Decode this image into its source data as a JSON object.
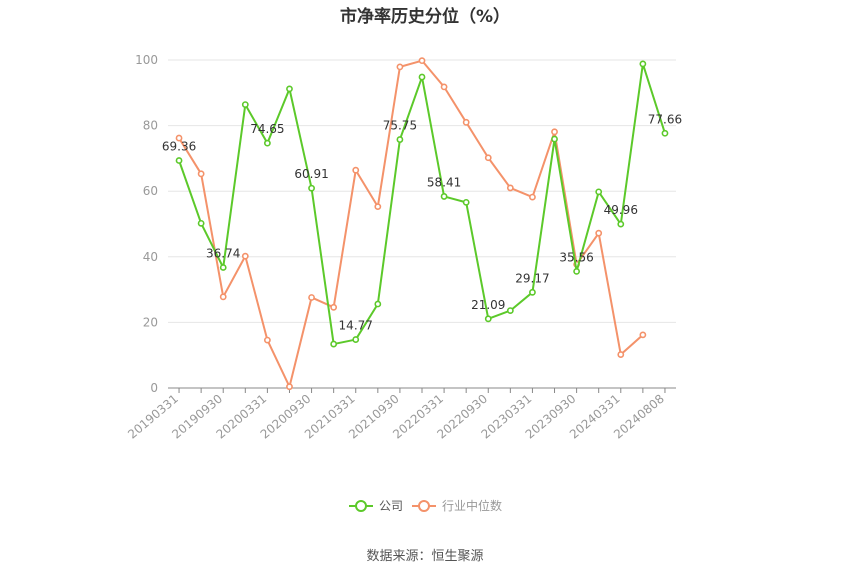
{
  "title": "市净率历史分位（%）",
  "source": "数据来源：恒生聚源",
  "colors": {
    "company": "#5cc92a",
    "industry": "#f4926a",
    "grid": "#e6e6e6",
    "axis": "#888888",
    "tick_text": "#999999",
    "label_text": "#333333"
  },
  "chart_data": {
    "type": "line",
    "title": "市净率历史分位（%）",
    "ylim": [
      0,
      100
    ],
    "yticks": [
      0,
      20,
      40,
      60,
      80,
      100
    ],
    "grid": true,
    "legend_position": "bottom",
    "x": [
      "20190331",
      "20190630",
      "20190930",
      "20191231",
      "20200331",
      "20200630",
      "20200930",
      "20201231",
      "20210331",
      "20210630",
      "20210930",
      "20211231",
      "20220331",
      "20220630",
      "20220930",
      "20221231",
      "20230331",
      "20230630",
      "20230930",
      "20231231",
      "20240331",
      "20240630",
      "20240808"
    ],
    "xtick_labels": [
      "20190331",
      "20190930",
      "20200331",
      "20200930",
      "20210331",
      "20210930",
      "20220331",
      "20220930",
      "20230331",
      "20230930",
      "20240331",
      "20240808"
    ],
    "series": [
      {
        "name": "公司",
        "values": [
          69.36,
          50.2,
          36.74,
          86.4,
          74.65,
          91.2,
          60.91,
          13.4,
          14.77,
          25.6,
          75.75,
          94.8,
          58.41,
          56.6,
          21.09,
          23.6,
          29.17,
          75.9,
          35.56,
          59.8,
          49.96,
          98.8,
          77.66
        ],
        "data_labels": {
          "0": "69.36",
          "2": "36.74",
          "4": "74.65",
          "6": "60.91",
          "8": "14.77",
          "10": "75.75",
          "12": "58.41",
          "14": "21.09",
          "16": "29.17",
          "18": "35.56",
          "20": "49.96",
          "22": "77.66"
        }
      },
      {
        "name": "行业中位数",
        "values": [
          76.2,
          65.3,
          27.8,
          40.2,
          14.6,
          0.4,
          27.6,
          24.6,
          66.4,
          55.3,
          97.9,
          99.8,
          91.8,
          81.0,
          70.2,
          61.0,
          58.2,
          78.1,
          37.7,
          47.2,
          10.2,
          16.2,
          null
        ]
      }
    ]
  }
}
